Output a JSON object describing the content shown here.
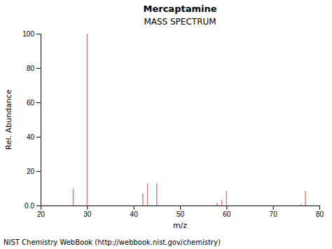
{
  "chart_data": {
    "type": "bar",
    "title": "Mercaptamine",
    "subtitle": "MASS SPECTRUM",
    "x_label": "m/z",
    "y_label": "Rel. Abundance",
    "footer": "NIST Chemistry WebBook (http://webbook.nist.gov/chemistry)",
    "x": [
      27,
      30,
      42,
      43,
      45,
      58,
      59,
      60,
      76,
      77
    ],
    "values": [
      10.0,
      100.0,
      7.0,
      13.0,
      13.0,
      1.5,
      3.0,
      8.5,
      1.0,
      8.5
    ],
    "color": "#e08080",
    "xlim": [
      20,
      80
    ],
    "ylim": [
      0,
      100
    ],
    "xticks": [
      20,
      30,
      40,
      50,
      60,
      70,
      80
    ],
    "yticks": [
      {
        "value": 0,
        "label": "0.0"
      },
      20,
      40,
      60,
      80,
      100
    ],
    "grid": false
  }
}
